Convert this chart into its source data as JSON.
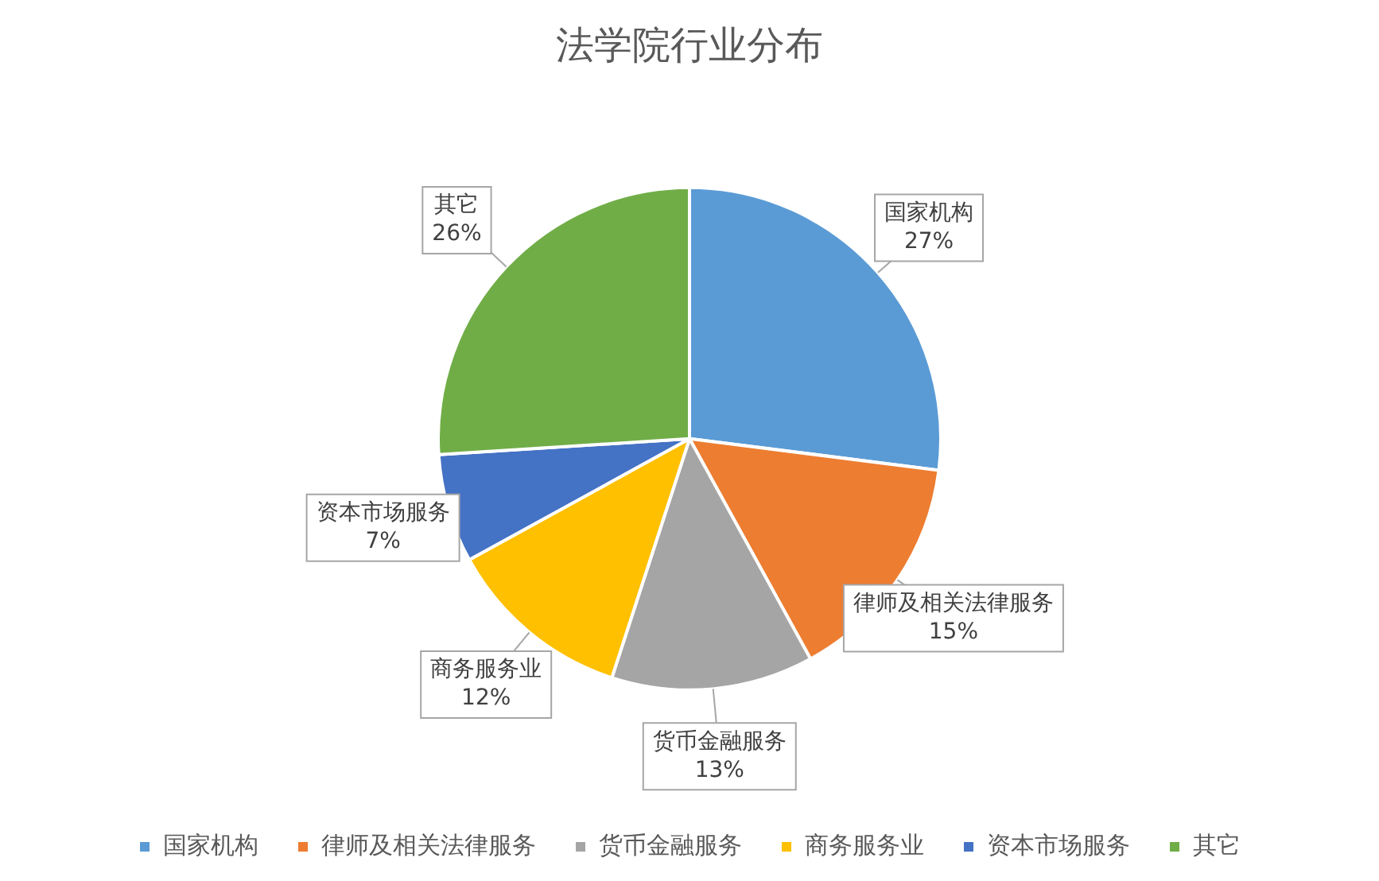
{
  "chart_data": {
    "type": "pie",
    "title": "法学院行业分布",
    "categories": [
      "国家机构",
      "律师及相关法律服务",
      "货币金融服务",
      "商务服务业",
      "资本市场服务",
      "其它"
    ],
    "values": [
      27,
      15,
      13,
      12,
      7,
      26
    ],
    "value_labels": [
      "27%",
      "15%",
      "13%",
      "12%",
      "7%",
      "26%"
    ],
    "colors": [
      "#5b9bd5",
      "#ed7d31",
      "#a5a5a5",
      "#ffc000",
      "#4472c4",
      "#70ad47"
    ],
    "legend": "bottom"
  }
}
